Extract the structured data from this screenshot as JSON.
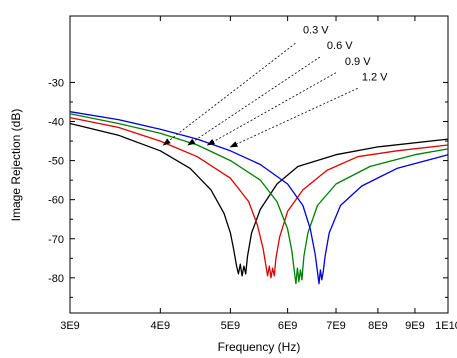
{
  "chart_data": {
    "type": "line",
    "title": "",
    "xlabel": "Frequency (Hz)",
    "ylabel": "Image Rejection (dB)",
    "x_scale": "log",
    "xlim": [
      3000000000,
      10000000000
    ],
    "ylim": [
      -89,
      -13
    ],
    "x_ticks": [
      {
        "value": 3000000000,
        "label": "3E9"
      },
      {
        "value": 4000000000,
        "label": "4E9"
      },
      {
        "value": 5000000000,
        "label": "5E9"
      },
      {
        "value": 6000000000,
        "label": "6E9"
      },
      {
        "value": 7000000000,
        "label": "7E9"
      },
      {
        "value": 8000000000,
        "label": "8E9"
      },
      {
        "value": 9000000000,
        "label": "9E9"
      },
      {
        "value": 10000000000,
        "label": "1E10"
      }
    ],
    "y_ticks": [
      {
        "value": -30,
        "label": "-30"
      },
      {
        "value": -40,
        "label": "-40"
      },
      {
        "value": -50,
        "label": "-50"
      },
      {
        "value": -60,
        "label": "-60"
      },
      {
        "value": -70,
        "label": "-70"
      },
      {
        "value": -80,
        "label": "-80"
      }
    ],
    "grid": false,
    "series": [
      {
        "name": "0.3 V",
        "color": "#000000",
        "points": [
          [
            3000000000,
            -40.5
          ],
          [
            3500000000,
            -43.5
          ],
          [
            4000000000,
            -47.5
          ],
          [
            4400000000,
            -52.0
          ],
          [
            4700000000,
            -57.5
          ],
          [
            4900000000,
            -63.5
          ],
          [
            5000000000,
            -68.5
          ],
          [
            5050000000,
            -72.5
          ],
          [
            5100000000,
            -77.0
          ],
          [
            5130000000,
            -79.0
          ],
          [
            5160000000,
            -76.5
          ],
          [
            5190000000,
            -79.5
          ],
          [
            5220000000,
            -77.0
          ],
          [
            5250000000,
            -79.0
          ],
          [
            5280000000,
            -74.5
          ],
          [
            5350000000,
            -68.5
          ],
          [
            5500000000,
            -62.5
          ],
          [
            5800000000,
            -56.0
          ],
          [
            6200000000,
            -51.5
          ],
          [
            7000000000,
            -48.5
          ],
          [
            8000000000,
            -46.5
          ],
          [
            10000000000,
            -44.5
          ]
        ]
      },
      {
        "name": "0.6 V",
        "color": "#e00000",
        "points": [
          [
            3000000000,
            -39.0
          ],
          [
            3500000000,
            -41.5
          ],
          [
            4000000000,
            -45.0
          ],
          [
            4500000000,
            -49.0
          ],
          [
            5000000000,
            -54.5
          ],
          [
            5300000000,
            -60.5
          ],
          [
            5450000000,
            -66.5
          ],
          [
            5550000000,
            -72.5
          ],
          [
            5600000000,
            -77.0
          ],
          [
            5630000000,
            -79.5
          ],
          [
            5660000000,
            -77.0
          ],
          [
            5690000000,
            -80.0
          ],
          [
            5720000000,
            -77.5
          ],
          [
            5750000000,
            -79.5
          ],
          [
            5780000000,
            -75.0
          ],
          [
            5850000000,
            -69.5
          ],
          [
            6000000000,
            -63.0
          ],
          [
            6300000000,
            -57.5
          ],
          [
            6800000000,
            -52.5
          ],
          [
            7500000000,
            -49.0
          ],
          [
            8500000000,
            -47.5
          ],
          [
            10000000000,
            -46.0
          ]
        ]
      },
      {
        "name": "0.9 V",
        "color": "#008000",
        "points": [
          [
            3000000000,
            -38.0
          ],
          [
            3500000000,
            -40.5
          ],
          [
            4000000000,
            -43.0
          ],
          [
            4500000000,
            -46.0
          ],
          [
            5000000000,
            -50.0
          ],
          [
            5500000000,
            -55.0
          ],
          [
            5800000000,
            -60.5
          ],
          [
            6000000000,
            -67.5
          ],
          [
            6080000000,
            -73.0
          ],
          [
            6130000000,
            -78.5
          ],
          [
            6160000000,
            -81.5
          ],
          [
            6190000000,
            -77.5
          ],
          [
            6220000000,
            -81.0
          ],
          [
            6250000000,
            -78.0
          ],
          [
            6280000000,
            -80.5
          ],
          [
            6320000000,
            -74.5
          ],
          [
            6400000000,
            -68.5
          ],
          [
            6600000000,
            -61.5
          ],
          [
            7000000000,
            -56.0
          ],
          [
            7800000000,
            -51.5
          ],
          [
            9000000000,
            -48.5
          ],
          [
            10000000000,
            -47.0
          ]
        ]
      },
      {
        "name": "1.2 V",
        "color": "#0000e0",
        "points": [
          [
            3000000000,
            -37.5
          ],
          [
            3500000000,
            -39.5
          ],
          [
            4000000000,
            -42.0
          ],
          [
            4500000000,
            -44.5
          ],
          [
            5000000000,
            -47.5
          ],
          [
            5500000000,
            -51.0
          ],
          [
            6000000000,
            -56.0
          ],
          [
            6300000000,
            -61.5
          ],
          [
            6450000000,
            -67.5
          ],
          [
            6550000000,
            -74.0
          ],
          [
            6600000000,
            -78.5
          ],
          [
            6630000000,
            -81.5
          ],
          [
            6660000000,
            -78.0
          ],
          [
            6690000000,
            -80.5
          ],
          [
            6720000000,
            -78.5
          ],
          [
            6760000000,
            -74.5
          ],
          [
            6850000000,
            -68.5
          ],
          [
            7100000000,
            -61.5
          ],
          [
            7600000000,
            -56.5
          ],
          [
            8500000000,
            -52.0
          ],
          [
            10000000000,
            -48.5
          ]
        ]
      }
    ],
    "annotations": [
      {
        "text": "0.3 V",
        "label_x": 6300000000,
        "label_y": -17.5,
        "arrow_from_x": 6150000000,
        "arrow_from_y": -20.0,
        "arrow_to_x": 4040000000,
        "arrow_to_y": -46.0
      },
      {
        "text": "0.6 V",
        "label_x": 6800000000,
        "label_y": -21.5,
        "arrow_from_x": 6650000000,
        "arrow_from_y": -23.5,
        "arrow_to_x": 4370000000,
        "arrow_to_y": -46.0
      },
      {
        "text": "0.9 V",
        "label_x": 7200000000,
        "label_y": -25.5,
        "arrow_from_x": 7000000000,
        "arrow_from_y": -27.5,
        "arrow_to_x": 4650000000,
        "arrow_to_y": -46.0
      },
      {
        "text": "1.2 V",
        "label_x": 7600000000,
        "label_y": -29.5,
        "arrow_from_x": 7500000000,
        "arrow_from_y": -31.5,
        "arrow_to_x": 5000000000,
        "arrow_to_y": -46.5
      }
    ]
  }
}
